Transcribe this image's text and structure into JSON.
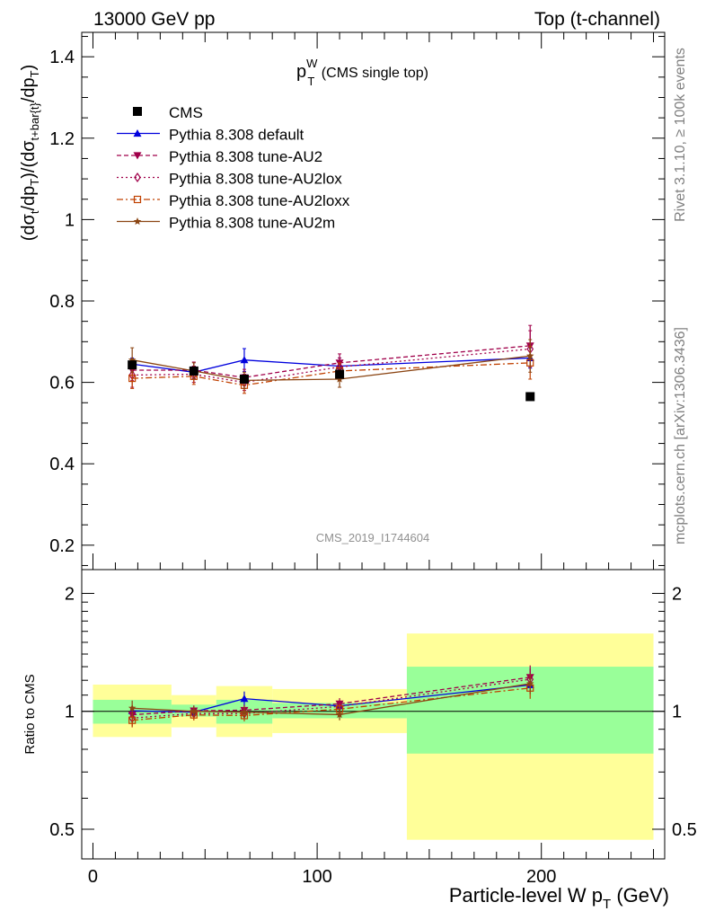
{
  "header": {
    "left": "13000 GeV pp",
    "right": "Top (t-channel)"
  },
  "side_labels": {
    "rivet": "Rivet 3.1.10, ≥ 100k events",
    "mcplots": "mcplots.cern.ch [arXiv:1306.3436]"
  },
  "plot_title": {
    "main": "p",
    "sup": "W",
    "sub": "T",
    "rest": " (CMS single top)"
  },
  "watermark": "CMS_2019_I1744604",
  "chart_data": {
    "type": "line",
    "xlabel": "Particle-level W p_T (GeV)",
    "ylabel": "(dσ_t/dp_T)/(dσ_t+bar{t}/dp_T)",
    "ratio_ylabel": "Ratio to CMS",
    "xlim": [
      -5,
      255
    ],
    "ylim": [
      0.14,
      1.46
    ],
    "ratio_ylim": [
      0.42,
      2.3
    ],
    "ratio_scale": "log",
    "x_ticks": [
      0,
      100,
      200
    ],
    "y_ticks": [
      0.2,
      0.4,
      0.6,
      0.8,
      1,
      1.2,
      1.4
    ],
    "ratio_ticks": [
      0.5,
      1,
      2
    ],
    "legend_position": "top-left",
    "data": {
      "name": "CMS",
      "color": "#000000",
      "x": [
        17.5,
        45,
        67.5,
        110,
        195
      ],
      "y": [
        0.643,
        0.628,
        0.608,
        0.62,
        0.565
      ],
      "bins": [
        [
          0,
          35
        ],
        [
          35,
          55
        ],
        [
          55,
          80
        ],
        [
          80,
          140
        ],
        [
          140,
          250
        ]
      ],
      "band_inner": [
        [
          0.93,
          1.07
        ],
        [
          0.97,
          1.04
        ],
        [
          0.93,
          1.07
        ],
        [
          0.96,
          1.05
        ],
        [
          0.78,
          1.3
        ]
      ],
      "band_outer": [
        [
          0.86,
          1.17
        ],
        [
          0.91,
          1.1
        ],
        [
          0.86,
          1.16
        ],
        [
          0.88,
          1.14
        ],
        [
          0.47,
          1.58
        ]
      ]
    },
    "series": [
      {
        "name": "Pythia 8.308 default",
        "color": "#0000dd",
        "dash": "",
        "marker": "triangle-up",
        "x": [
          17.5,
          45,
          67.5,
          110,
          195
        ],
        "y": [
          0.645,
          0.625,
          0.655,
          0.64,
          0.66
        ],
        "err": [
          0.015,
          0.015,
          0.028,
          0.02,
          0.025
        ]
      },
      {
        "name": "Pythia 8.308 tune-AU2",
        "color": "#a0004a",
        "dash": "5,3",
        "marker": "triangle-down",
        "x": [
          17.5,
          45,
          67.5,
          110,
          195
        ],
        "y": [
          0.63,
          0.63,
          0.612,
          0.648,
          0.69
        ],
        "err": [
          0.025,
          0.02,
          0.02,
          0.022,
          0.05
        ]
      },
      {
        "name": "Pythia 8.308 tune-AU2lox",
        "color": "#a0004a",
        "dash": "2,3",
        "marker": "diamond",
        "x": [
          17.5,
          45,
          67.5,
          110,
          195
        ],
        "y": [
          0.618,
          0.62,
          0.6,
          0.638,
          0.682
        ],
        "err": [
          0.03,
          0.02,
          0.02,
          0.022,
          0.045
        ]
      },
      {
        "name": "Pythia 8.308 tune-AU2loxx",
        "color": "#c04000",
        "dash": "7,3,2,3",
        "marker": "square-open",
        "x": [
          17.5,
          45,
          67.5,
          110,
          195
        ],
        "y": [
          0.61,
          0.615,
          0.593,
          0.628,
          0.648
        ],
        "err": [
          0.025,
          0.02,
          0.02,
          0.02,
          0.04
        ]
      },
      {
        "name": "Pythia 8.308 tune-AU2m",
        "color": "#8b4513",
        "dash": "",
        "marker": "star",
        "x": [
          17.5,
          45,
          67.5,
          110,
          195
        ],
        "y": [
          0.655,
          0.628,
          0.605,
          0.608,
          0.665
        ],
        "err": [
          0.03,
          0.02,
          0.02,
          0.02,
          0.04
        ]
      }
    ]
  }
}
